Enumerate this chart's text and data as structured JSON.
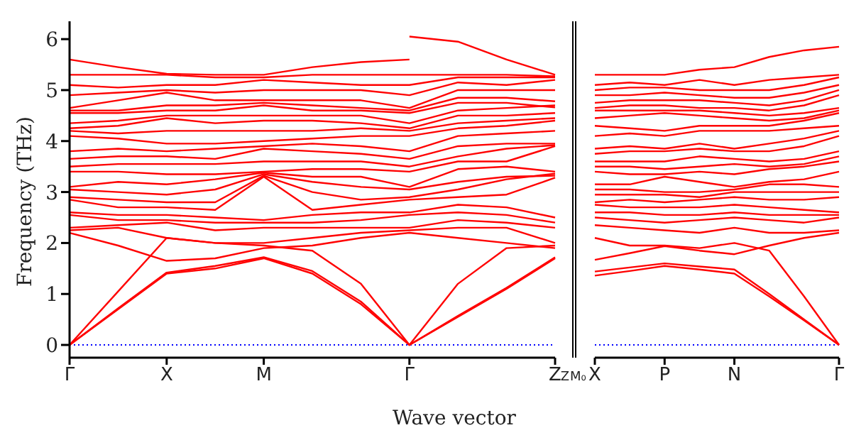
{
  "chart_data": [
    {
      "type": "line",
      "ylabel": "Frequency (THz)",
      "xlabel": "Wave vector",
      "color": "#ff0000",
      "categories": [
        "Γ",
        null,
        "X",
        null,
        "M",
        null,
        null,
        "Γ",
        null,
        null,
        "Z"
      ],
      "ylim": [
        -0.25,
        6.35
      ],
      "yticks": [
        0,
        1,
        2,
        3,
        4,
        5,
        6
      ],
      "ref_lines": [
        {
          "axis": "y",
          "value": 0,
          "color": "#0000ff",
          "line_style": "dotted"
        }
      ],
      "series": [
        {
          "values": [
            0,
            0.7,
            1.4,
            1.5,
            1.7,
            1.4,
            0.8,
            0,
            0.55,
            1.1,
            1.7
          ]
        },
        {
          "values": [
            0,
            0.72,
            1.42,
            1.55,
            1.72,
            1.45,
            0.85,
            0,
            0.57,
            1.12,
            1.72
          ]
        },
        {
          "values": [
            0,
            1.05,
            2.1,
            2.0,
            1.95,
            1.85,
            1.2,
            0,
            1.2,
            1.9,
            1.95
          ]
        },
        {
          "values": [
            2.2,
            1.95,
            1.65,
            1.7,
            1.9,
            1.95,
            2.1,
            2.2,
            2.1,
            2.0,
            1.9
          ]
        },
        {
          "values": [
            2.25,
            2.3,
            2.1,
            2.0,
            2.0,
            2.1,
            2.2,
            2.25,
            2.3,
            2.3,
            2.0
          ]
        },
        {
          "values": [
            2.3,
            2.35,
            2.4,
            2.25,
            2.3,
            2.3,
            2.3,
            2.3,
            2.45,
            2.4,
            2.3
          ]
        },
        {
          "values": [
            2.55,
            2.45,
            2.45,
            2.4,
            2.4,
            2.4,
            2.45,
            2.55,
            2.6,
            2.55,
            2.4
          ]
        },
        {
          "values": [
            2.6,
            2.55,
            2.55,
            2.5,
            2.45,
            2.55,
            2.6,
            2.6,
            2.75,
            2.7,
            2.5
          ]
        },
        {
          "values": [
            2.85,
            2.7,
            2.7,
            2.65,
            3.3,
            2.65,
            2.75,
            2.85,
            2.9,
            2.95,
            3.28
          ]
        },
        {
          "values": [
            2.9,
            2.85,
            2.8,
            2.8,
            3.32,
            3.0,
            2.85,
            2.9,
            3.05,
            3.25,
            3.36
          ]
        },
        {
          "values": [
            3.05,
            3.0,
            2.95,
            3.05,
            3.35,
            3.2,
            3.1,
            3.05,
            3.2,
            3.3,
            3.32
          ]
        },
        {
          "values": [
            3.1,
            3.2,
            3.15,
            3.25,
            3.38,
            3.3,
            3.3,
            3.1,
            3.45,
            3.5,
            3.4
          ]
        },
        {
          "values": [
            3.4,
            3.4,
            3.35,
            3.35,
            3.4,
            3.45,
            3.45,
            3.4,
            3.6,
            3.6,
            3.9
          ]
        },
        {
          "values": [
            3.5,
            3.55,
            3.55,
            3.55,
            3.6,
            3.6,
            3.6,
            3.5,
            3.7,
            3.85,
            3.92
          ]
        },
        {
          "values": [
            3.65,
            3.7,
            3.7,
            3.65,
            3.85,
            3.8,
            3.75,
            3.65,
            3.9,
            3.95,
            3.95
          ]
        },
        {
          "values": [
            3.8,
            3.85,
            3.8,
            3.85,
            3.9,
            3.95,
            3.9,
            3.8,
            4.1,
            4.15,
            4.2
          ]
        },
        {
          "values": [
            4.1,
            4.05,
            3.95,
            3.95,
            4.0,
            4.05,
            4.1,
            4.1,
            4.25,
            4.3,
            4.4
          ]
        },
        {
          "values": [
            4.2,
            4.15,
            4.2,
            4.2,
            4.2,
            4.2,
            4.25,
            4.2,
            4.35,
            4.4,
            4.45
          ]
        },
        {
          "values": [
            4.25,
            4.3,
            4.45,
            4.35,
            4.4,
            4.4,
            4.35,
            4.25,
            4.5,
            4.5,
            4.55
          ]
        },
        {
          "values": [
            4.35,
            4.4,
            4.5,
            4.5,
            4.5,
            4.5,
            4.5,
            4.35,
            4.6,
            4.65,
            4.7
          ]
        },
        {
          "values": [
            4.55,
            4.55,
            4.6,
            4.6,
            4.7,
            4.6,
            4.6,
            4.55,
            4.75,
            4.75,
            4.66
          ]
        },
        {
          "values": [
            4.6,
            4.6,
            4.7,
            4.7,
            4.75,
            4.7,
            4.65,
            4.6,
            4.85,
            4.85,
            4.78
          ]
        },
        {
          "values": [
            4.65,
            4.8,
            4.95,
            4.8,
            4.8,
            4.8,
            4.8,
            4.65,
            5.0,
            5.0,
            5.0
          ]
        },
        {
          "values": [
            4.9,
            4.95,
            5.0,
            4.95,
            5.0,
            5.0,
            5.0,
            4.9,
            5.15,
            5.1,
            5.2
          ]
        },
        {
          "values": [
            5.1,
            5.05,
            5.1,
            5.1,
            5.2,
            5.15,
            5.1,
            5.1,
            5.25,
            5.25,
            5.25
          ]
        },
        {
          "values": [
            5.3,
            5.3,
            5.3,
            5.25,
            5.25,
            5.3,
            5.3,
            5.3,
            5.3,
            5.3,
            5.27
          ]
        },
        {
          "values": [
            5.6,
            5.45,
            5.32,
            5.3,
            5.3,
            5.45,
            5.55,
            5.6,
            null,
            null,
            null
          ]
        },
        {
          "values": [
            null,
            null,
            null,
            null,
            null,
            null,
            null,
            6.05,
            5.95,
            5.6,
            5.3
          ]
        }
      ]
    },
    {
      "type": "line",
      "color": "#ff0000",
      "categories": [
        "X",
        null,
        "P",
        null,
        "N",
        null,
        null,
        "Γ"
      ],
      "ylim": [
        -0.25,
        6.35
      ],
      "yticks": [
        0,
        1,
        2,
        3,
        4,
        5,
        6
      ],
      "tick_labels": "x",
      "ref_lines": [
        {
          "axis": "y",
          "value": 0,
          "color": "#0000ff",
          "line_style": "dotted"
        }
      ],
      "annotations": [
        "Z",
        "M₀"
      ],
      "series": [
        {
          "values": [
            1.36,
            1.45,
            1.55,
            1.48,
            1.4,
            0.95,
            0.48,
            0
          ]
        },
        {
          "values": [
            1.44,
            1.52,
            1.6,
            1.54,
            1.48,
            1.0,
            0.5,
            0
          ]
        },
        {
          "values": [
            2.1,
            1.95,
            1.95,
            1.9,
            2.0,
            1.85,
            0.95,
            0
          ]
        },
        {
          "values": [
            1.67,
            1.8,
            1.94,
            1.85,
            1.78,
            1.95,
            2.1,
            2.2
          ]
        },
        {
          "values": [
            2.35,
            2.3,
            2.25,
            2.2,
            2.3,
            2.2,
            2.2,
            2.25
          ]
        },
        {
          "values": [
            2.5,
            2.45,
            2.4,
            2.45,
            2.5,
            2.45,
            2.4,
            2.5
          ]
        },
        {
          "values": [
            2.6,
            2.6,
            2.55,
            2.55,
            2.6,
            2.55,
            2.55,
            2.55
          ]
        },
        {
          "values": [
            2.75,
            2.7,
            2.7,
            2.7,
            2.75,
            2.7,
            2.65,
            2.6
          ]
        },
        {
          "values": [
            2.8,
            2.85,
            2.8,
            2.85,
            2.9,
            2.85,
            2.85,
            2.9
          ]
        },
        {
          "values": [
            2.95,
            2.95,
            2.95,
            2.9,
            3.0,
            3.0,
            3.0,
            3.0
          ]
        },
        {
          "values": [
            3.05,
            3.05,
            3.0,
            3.0,
            3.05,
            3.15,
            3.15,
            3.1
          ]
        },
        {
          "values": [
            3.15,
            3.15,
            3.3,
            3.2,
            3.1,
            3.2,
            3.25,
            3.4
          ]
        },
        {
          "values": [
            3.4,
            3.35,
            3.35,
            3.4,
            3.35,
            3.45,
            3.5,
            3.6
          ]
        },
        {
          "values": [
            3.5,
            3.5,
            3.45,
            3.5,
            3.55,
            3.5,
            3.55,
            3.7
          ]
        },
        {
          "values": [
            3.6,
            3.6,
            3.6,
            3.7,
            3.65,
            3.6,
            3.65,
            3.8
          ]
        },
        {
          "values": [
            3.75,
            3.8,
            3.8,
            3.85,
            3.8,
            3.8,
            3.9,
            4.1
          ]
        },
        {
          "values": [
            3.85,
            3.9,
            3.85,
            3.95,
            3.85,
            3.95,
            4.05,
            4.2
          ]
        },
        {
          "values": [
            4.1,
            4.15,
            4.1,
            4.2,
            4.2,
            4.2,
            4.25,
            4.3
          ]
        },
        {
          "values": [
            4.3,
            4.25,
            4.2,
            4.3,
            4.3,
            4.3,
            4.4,
            4.55
          ]
        },
        {
          "values": [
            4.45,
            4.5,
            4.55,
            4.5,
            4.45,
            4.4,
            4.45,
            4.6
          ]
        },
        {
          "values": [
            4.6,
            4.6,
            4.6,
            4.6,
            4.55,
            4.5,
            4.55,
            4.65
          ]
        },
        {
          "values": [
            4.65,
            4.7,
            4.7,
            4.65,
            4.65,
            4.6,
            4.7,
            4.9
          ]
        },
        {
          "values": [
            4.75,
            4.8,
            4.8,
            4.8,
            4.75,
            4.7,
            4.8,
            5.0
          ]
        },
        {
          "values": [
            4.9,
            4.9,
            4.95,
            4.9,
            4.85,
            4.85,
            4.95,
            5.1
          ]
        },
        {
          "values": [
            5.0,
            5.05,
            5.05,
            5.0,
            5.0,
            5.0,
            5.1,
            5.25
          ]
        },
        {
          "values": [
            5.1,
            5.15,
            5.1,
            5.2,
            5.1,
            5.2,
            5.25,
            5.3
          ]
        },
        {
          "values": [
            5.3,
            5.3,
            5.3,
            5.4,
            5.45,
            5.65,
            5.78,
            5.85
          ]
        }
      ]
    }
  ]
}
